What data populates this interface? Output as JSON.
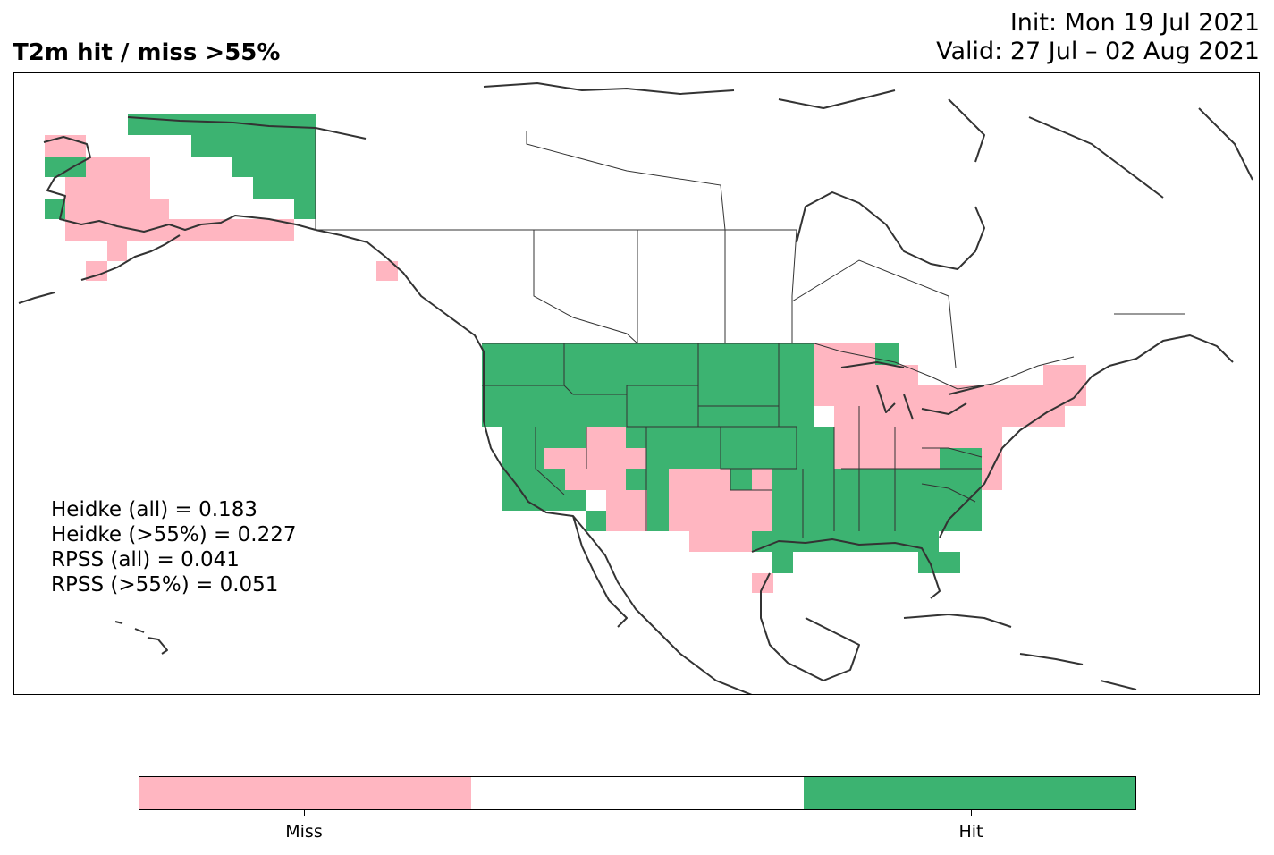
{
  "title": "T2m hit / miss  >55%",
  "init_line": "Init: Mon 19 Jul 2021",
  "valid_line": "Valid: 27 Jul – 02 Aug 2021",
  "scores": [
    "Heidke (all) = 0.183",
    "Heidke (>55%) = 0.227",
    "RPSS (all) = 0.041",
    "RPSS (>55%) = 0.051"
  ],
  "legend": {
    "categories": [
      "Miss",
      "",
      "Hit"
    ],
    "labels": [
      "Miss",
      "Hit"
    ]
  },
  "colors": {
    "miss": "#ffb6c1",
    "neutral": "#ffffff",
    "hit": "#3cb371",
    "coast": "#333333"
  }
}
